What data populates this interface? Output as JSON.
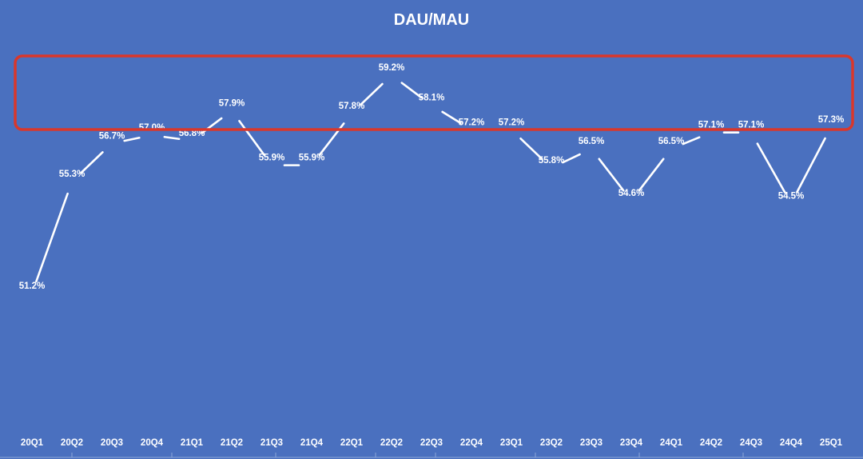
{
  "chart_data": {
    "type": "line",
    "title": "DAU/MAU",
    "categories": [
      "20Q1",
      "20Q2",
      "20Q3",
      "20Q4",
      "21Q1",
      "21Q2",
      "21Q3",
      "21Q4",
      "22Q1",
      "22Q2",
      "22Q3",
      "22Q4",
      "23Q1",
      "23Q2",
      "23Q3",
      "23Q4",
      "24Q1",
      "24Q2",
      "24Q3",
      "24Q4",
      "25Q1"
    ],
    "values": [
      51.2,
      55.3,
      56.7,
      57.0,
      56.8,
      57.9,
      55.9,
      55.9,
      57.8,
      59.2,
      58.1,
      57.2,
      57.2,
      55.8,
      56.5,
      54.6,
      56.5,
      57.1,
      57.1,
      54.5,
      57.3
    ],
    "data_labels": [
      "51.2%",
      "55.3%",
      "56.7%",
      "57.0%",
      "56.8%",
      "57.9%",
      "55.9%",
      "55.9%",
      "57.8%",
      "59.2%",
      "58.1%",
      "57.2%",
      "57.2%",
      "55.8%",
      "56.5%",
      "54.6%",
      "56.5%",
      "57.1%",
      "57.1%",
      "54.5%",
      "57.3%"
    ],
    "xlabel": "",
    "ylabel": "",
    "legend": "none",
    "grid": false,
    "drop_lines": true,
    "highlight_box": {
      "description": "red rounded rectangle around the upper value band",
      "color": "#d9372b"
    },
    "colors": {
      "background": "#4a70bf",
      "line": "#ffffff",
      "highlight": "#d9372b"
    }
  }
}
